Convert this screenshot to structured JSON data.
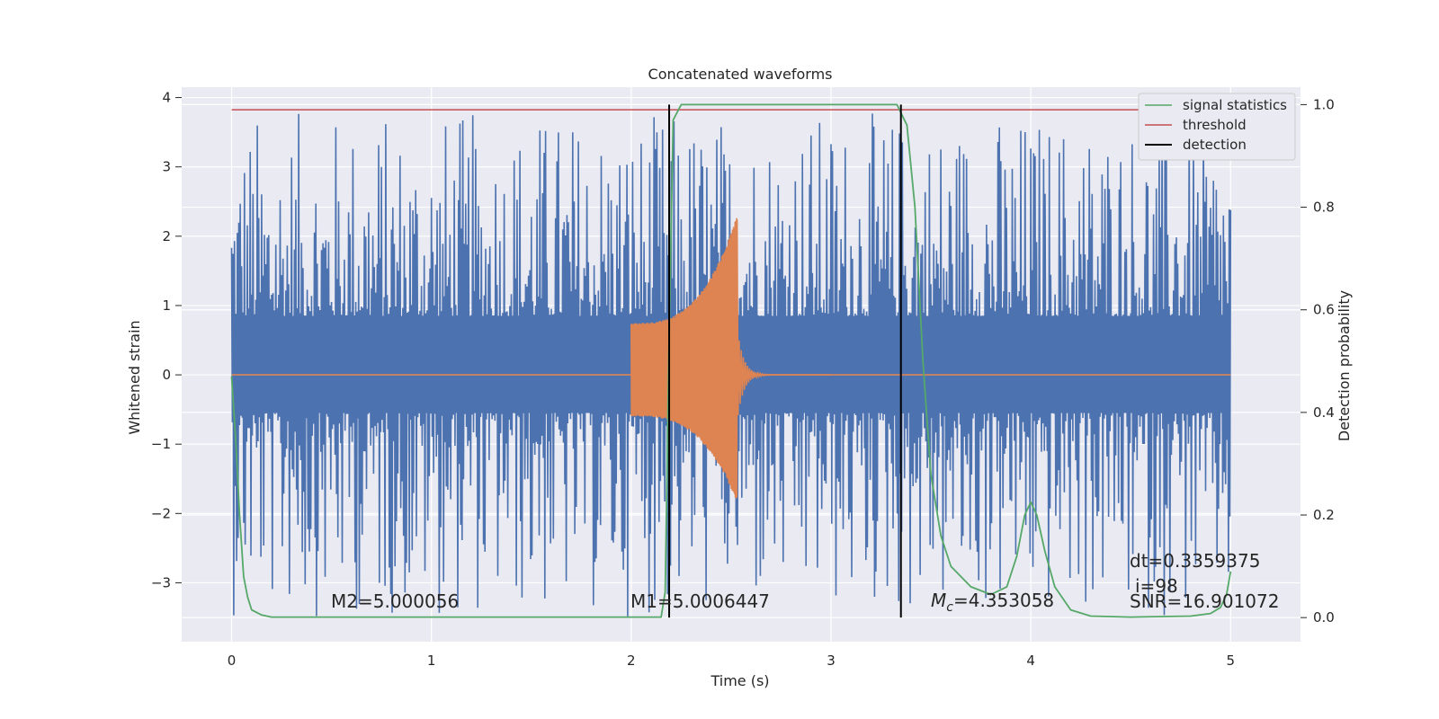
{
  "chart_data": {
    "type": "line",
    "title": "Concatenated waveforms",
    "xlabel": "Time (s)",
    "ylabel": "Whitened strain",
    "y2label": "Detection probability",
    "xlim": [
      -0.25,
      5.35
    ],
    "ylim": [
      -3.85,
      4.15
    ],
    "y2lim": [
      -0.047,
      1.034
    ],
    "x_ticks": [
      "0",
      "1",
      "2",
      "3",
      "4",
      "5"
    ],
    "y_ticks": [
      "4",
      "3",
      "2",
      "1",
      "0",
      "−1",
      "−2",
      "−3"
    ],
    "y2_ticks": [
      "1.0",
      "0.8",
      "0.6",
      "0.4",
      "0.2",
      "0.0"
    ],
    "grid": true,
    "legend_position": "top-right",
    "legend": [
      "signal statistics",
      "threshold",
      "detection"
    ],
    "colors": {
      "noise": "#4c72b0",
      "waveform": "#dd8452",
      "signal_statistics": "#55a868",
      "threshold": "#c44e52",
      "detection": "#000000",
      "plot_bg": "#eaeaf2",
      "grid": "#ffffff"
    },
    "series": [
      {
        "role": "whitened strain noise",
        "x_range": [
          0,
          5
        ],
        "envelope_core": [
          -0.55,
          0.85
        ],
        "peak_max": 3.8,
        "peak_min": -3.5
      },
      {
        "role": "injected waveform",
        "x_range": [
          2.0,
          2.53
        ],
        "amplitude_start": 0.75,
        "amplitude_end": 2.3,
        "ringdown_end": 3.0
      },
      {
        "name": "signal statistics",
        "axis": "right",
        "x": [
          0.0,
          0.02,
          0.04,
          0.06,
          0.08,
          0.1,
          0.15,
          0.2,
          1.0,
          2.0,
          2.15,
          2.17,
          2.19,
          2.21,
          2.25,
          3.0,
          3.33,
          3.38,
          3.42,
          3.46,
          3.5,
          3.55,
          3.6,
          3.7,
          3.8,
          3.88,
          3.93,
          3.97,
          4.0,
          4.03,
          4.07,
          4.12,
          4.2,
          4.3,
          4.5,
          4.8,
          4.9,
          4.95,
          4.98,
          5.0
        ],
        "y": [
          0.47,
          0.35,
          0.2,
          0.08,
          0.04,
          0.015,
          0.005,
          0.001,
          0.001,
          0.001,
          0.001,
          0.05,
          0.55,
          0.97,
          1.0,
          1.0,
          1.0,
          0.96,
          0.8,
          0.5,
          0.28,
          0.16,
          0.1,
          0.06,
          0.045,
          0.06,
          0.12,
          0.2,
          0.225,
          0.2,
          0.13,
          0.06,
          0.015,
          0.003,
          0.001,
          0.003,
          0.008,
          0.02,
          0.045,
          0.09
        ]
      },
      {
        "name": "threshold",
        "axis": "right",
        "x": [
          0,
          5
        ],
        "y": [
          0.99,
          0.99
        ]
      },
      {
        "name": "detection",
        "axis": "right",
        "x": [
          2.19,
          3.35
        ],
        "y_range": [
          0.0,
          1.0
        ]
      }
    ],
    "annotations": {
      "m2": "M2=5.000056",
      "m1": "M1=5.0006447",
      "mc_prefix": "M",
      "mc_sub": "c",
      "mc_value": "=4.353058",
      "dt": "dt=0.3359375",
      "i": "i=98",
      "snr": "SNR=16.901072"
    }
  }
}
